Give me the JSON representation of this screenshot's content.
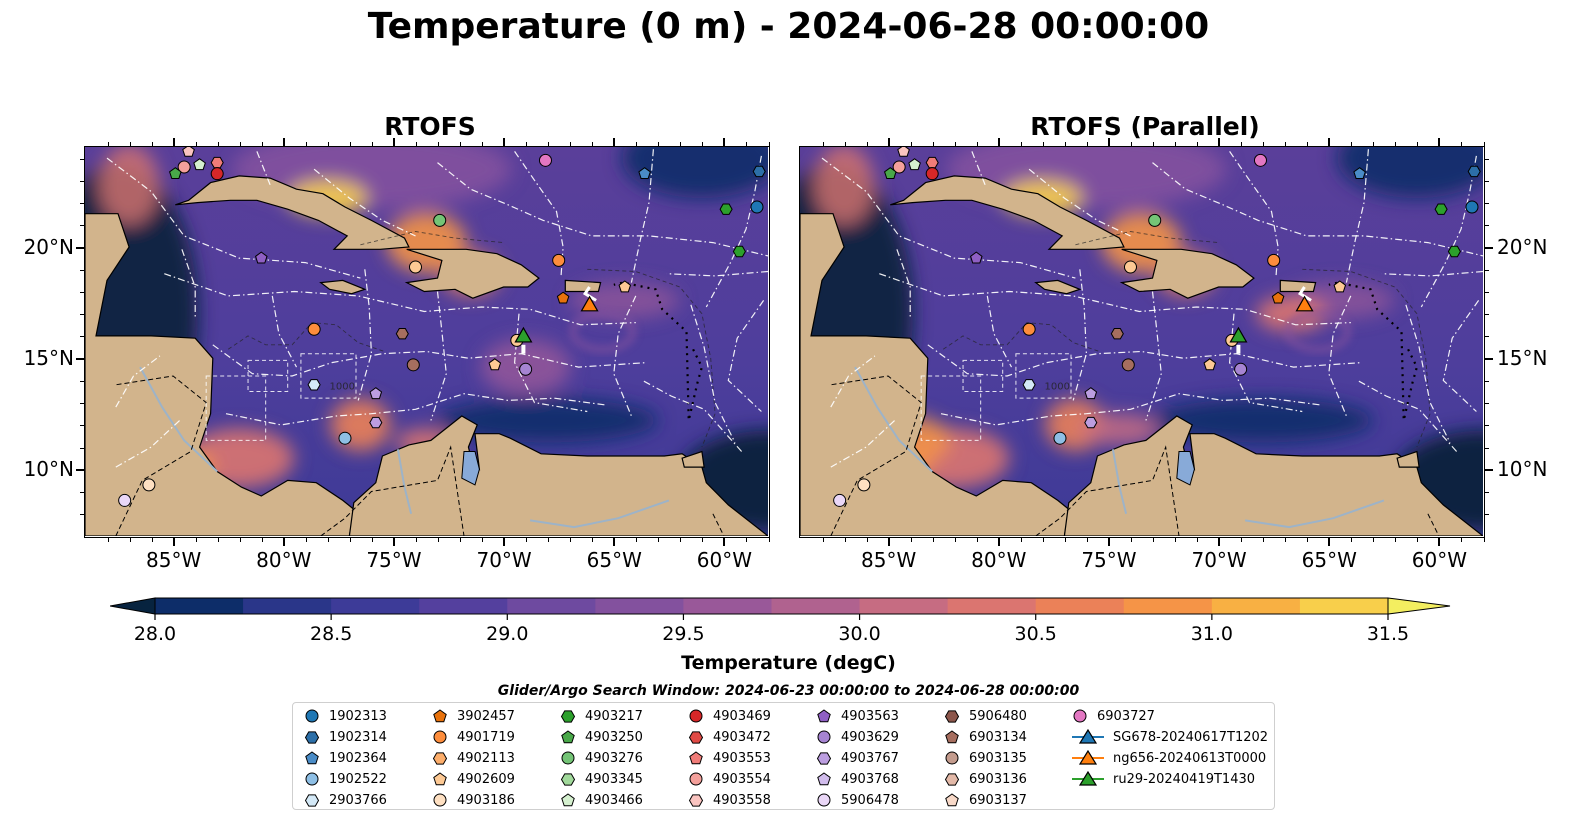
{
  "title": "Temperature (0 m) - 2024-06-28 00:00:00",
  "panels": [
    {
      "title": "RTOFS"
    },
    {
      "title": "RTOFS (Parallel)"
    }
  ],
  "map": {
    "extent": {
      "lon": [
        -89.0,
        -58.0
      ],
      "lat": [
        7.0,
        24.5
      ]
    },
    "lon_ticks": [
      {
        "value": -85,
        "label": "85°W"
      },
      {
        "value": -80,
        "label": "80°W"
      },
      {
        "value": -75,
        "label": "75°W"
      },
      {
        "value": -70,
        "label": "70°W"
      },
      {
        "value": -65,
        "label": "65°W"
      },
      {
        "value": -60,
        "label": "60°W"
      }
    ],
    "lat_ticks": [
      {
        "value": 10,
        "label": "10°N"
      },
      {
        "value": 15,
        "label": "15°N"
      },
      {
        "value": 20,
        "label": "20°N"
      }
    ],
    "land_color": "#d2b48c",
    "bathymetry_label": "1000"
  },
  "colorbar": {
    "label": "Temperature (degC)",
    "min": 28.0,
    "max": 31.5,
    "step": 0.25,
    "extend": "both",
    "ticks": [
      "28.0",
      "28.5",
      "29.0",
      "29.5",
      "30.0",
      "30.5",
      "31.0",
      "31.5"
    ],
    "colors": [
      "#07233f",
      "#0d2d69",
      "#2a3689",
      "#3d3b98",
      "#54409e",
      "#6e4aa0",
      "#83519e",
      "#995899",
      "#b0628f",
      "#c66c82",
      "#db7570",
      "#eb8158",
      "#f59447",
      "#f8b043",
      "#f8cf4b",
      "#f3ee60"
    ]
  },
  "search_window": "Glider/Argo Search Window: 2024-06-23 00:00:00 to 2024-06-28 00:00:00",
  "legend": [
    {
      "label": "1902313",
      "marker": "circle",
      "color": "#1f77b4"
    },
    {
      "label": "1902314",
      "marker": "hexagon",
      "color": "#2c6fa8"
    },
    {
      "label": "1902364",
      "marker": "pentagon",
      "color": "#4a8cc7"
    },
    {
      "label": "1902522",
      "marker": "circle",
      "color": "#8ebfe5"
    },
    {
      "label": "2903766",
      "marker": "hexagon",
      "color": "#d4e9f7"
    },
    {
      "label": "3902457",
      "marker": "pentagon",
      "color": "#e8720c"
    },
    {
      "label": "4901719",
      "marker": "circle",
      "color": "#fd8d3c"
    },
    {
      "label": "4902113",
      "marker": "hexagon",
      "color": "#fdae6b"
    },
    {
      "label": "4902609",
      "marker": "pentagon",
      "color": "#fdc994"
    },
    {
      "label": "4903186",
      "marker": "circle",
      "color": "#fee0c2"
    },
    {
      "label": "4903217",
      "marker": "hexagon",
      "color": "#2ca02c"
    },
    {
      "label": "4903250",
      "marker": "pentagon",
      "color": "#49a849"
    },
    {
      "label": "4903276",
      "marker": "circle",
      "color": "#74c476"
    },
    {
      "label": "4903345",
      "marker": "hexagon",
      "color": "#a1d99b"
    },
    {
      "label": "4903466",
      "marker": "pentagon",
      "color": "#d5f0cf"
    },
    {
      "label": "4903469",
      "marker": "circle",
      "color": "#d62728"
    },
    {
      "label": "4903472",
      "marker": "hexagon",
      "color": "#e04a45"
    },
    {
      "label": "4903553",
      "marker": "pentagon",
      "color": "#f07c78"
    },
    {
      "label": "4903554",
      "marker": "circle",
      "color": "#f4a09b"
    },
    {
      "label": "4903558",
      "marker": "hexagon",
      "color": "#fac4c0"
    },
    {
      "label": "4903563",
      "marker": "pentagon",
      "color": "#8f5fc4"
    },
    {
      "label": "4903629",
      "marker": "circle",
      "color": "#a684d2"
    },
    {
      "label": "4903767",
      "marker": "hexagon",
      "color": "#bc9ee0"
    },
    {
      "label": "4903768",
      "marker": "pentagon",
      "color": "#d1bcec"
    },
    {
      "label": "5906478",
      "marker": "circle",
      "color": "#ead7f7"
    },
    {
      "label": "5906480",
      "marker": "hexagon",
      "color": "#8c564b"
    },
    {
      "label": "6903134",
      "marker": "pentagon",
      "color": "#a66e5f"
    },
    {
      "label": "6903135",
      "marker": "circle",
      "color": "#c49c8e"
    },
    {
      "label": "6903136",
      "marker": "hexagon",
      "color": "#e3b9a8"
    },
    {
      "label": "6903137",
      "marker": "pentagon",
      "color": "#f8d9c8"
    },
    {
      "label": "6903727",
      "marker": "circle",
      "color": "#e377c2"
    },
    {
      "label": "SG678-20240617T1202",
      "marker": "triangle-line",
      "color": "#1f77b4"
    },
    {
      "label": "ng656-20240613T0000",
      "marker": "triangle-line",
      "color": "#ff7f0e"
    },
    {
      "label": "ru29-20240419T1430",
      "marker": "triangle-line",
      "color": "#2ca02c"
    }
  ]
}
